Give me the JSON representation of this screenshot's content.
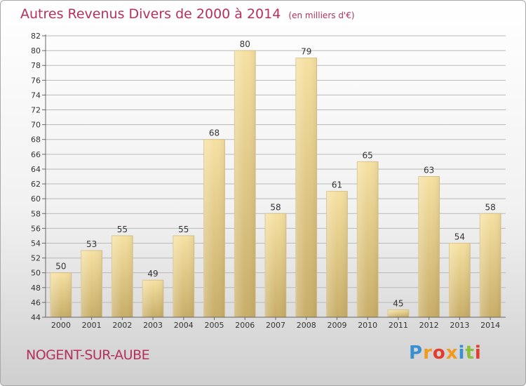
{
  "header": {
    "title": "Autres Revenus Divers de 2000 à 2014",
    "subtitle": "(en milliers d'€)"
  },
  "footer": {
    "commune": "NOGENT-SUR-AUBE",
    "logo_text": "Proxiti",
    "logo_colors": [
      "#3a8fd0",
      "#f39a1e",
      "#e53b2c",
      "#f39a1e",
      "#3a8fd0",
      "#8bbf3a",
      "#e53b2c"
    ]
  },
  "colors": {
    "title": "#b5305d",
    "bar_top": "#f6e1a2",
    "bar_bottom": "#c8ad68",
    "grid": "#b9b9b9"
  },
  "chart_data": {
    "type": "bar",
    "title": "Autres Revenus Divers de 2000 à 2014",
    "subtitle": "(en milliers d'€)",
    "categories": [
      "2000",
      "2001",
      "2002",
      "2003",
      "2004",
      "2005",
      "2006",
      "2007",
      "2008",
      "2009",
      "2010",
      "2011",
      "2012",
      "2013",
      "2014"
    ],
    "values": [
      50,
      53,
      55,
      49,
      55,
      68,
      80,
      58,
      79,
      61,
      65,
      45,
      63,
      54,
      58
    ],
    "ylim": [
      44,
      82
    ],
    "yticks": [
      44,
      46,
      48,
      50,
      52,
      54,
      56,
      58,
      60,
      62,
      64,
      66,
      68,
      70,
      72,
      74,
      76,
      78,
      80,
      82
    ],
    "grid": true,
    "data_labels": true
  }
}
